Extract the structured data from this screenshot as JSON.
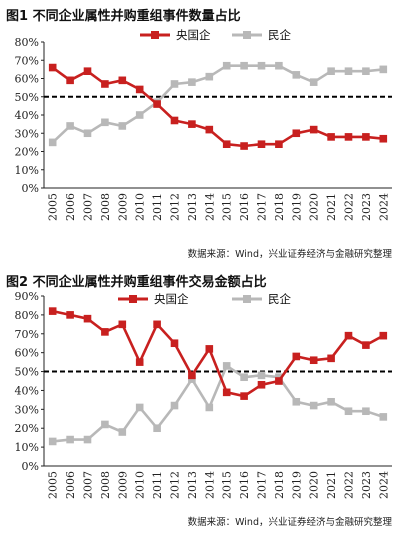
{
  "chart_data": [
    {
      "type": "line",
      "title": "图1  不同企业属性并购重组事件数量占比",
      "source": "数据来源：Wind，兴业证券经济与金融研究整理",
      "x": [
        "2005",
        "2006",
        "2007",
        "2008",
        "2009",
        "2010",
        "2011",
        "2012",
        "2013",
        "2014",
        "2015",
        "2016",
        "2017",
        "2018",
        "2019",
        "2020",
        "2021",
        "2022",
        "2023",
        "2024"
      ],
      "yticks": [
        "0%",
        "10%",
        "20%",
        "30%",
        "40%",
        "50%",
        "60%",
        "70%",
        "80%"
      ],
      "ylim": [
        0,
        80
      ],
      "reference_line": 50,
      "grid": false,
      "legend_position": "top-center",
      "series": [
        {
          "name": "央国企",
          "color": "#c8201f",
          "marker": "square",
          "values": [
            66,
            59,
            64,
            57,
            59,
            54,
            46,
            37,
            35,
            32,
            24,
            23,
            24,
            24,
            30,
            32,
            28,
            28,
            28,
            27
          ]
        },
        {
          "name": "民企",
          "color": "#b8b8b8",
          "marker": "square",
          "values": [
            25,
            34,
            30,
            36,
            34,
            40,
            47,
            57,
            58,
            61,
            67,
            67,
            67,
            67,
            62,
            58,
            64,
            64,
            64,
            65
          ]
        }
      ]
    },
    {
      "type": "line",
      "title": "图2  不同企业属性并购重组事件交易金额占比",
      "source": "数据来源：Wind，兴业证券经济与金融研究整理",
      "x": [
        "2005",
        "2006",
        "2007",
        "2008",
        "2009",
        "2010",
        "2011",
        "2012",
        "2013",
        "2014",
        "2015",
        "2016",
        "2017",
        "2018",
        "2019",
        "2020",
        "2021",
        "2022",
        "2023",
        "2024"
      ],
      "yticks": [
        "0%",
        "10%",
        "20%",
        "30%",
        "40%",
        "50%",
        "60%",
        "70%",
        "80%",
        "90%"
      ],
      "ylim": [
        0,
        90
      ],
      "reference_line": 50,
      "grid": false,
      "legend_position": "top-center",
      "series": [
        {
          "name": "央国企",
          "color": "#c8201f",
          "marker": "square",
          "values": [
            82,
            80,
            78,
            71,
            75,
            55,
            75,
            65,
            48,
            62,
            39,
            37,
            43,
            45,
            58,
            56,
            57,
            69,
            64,
            69
          ]
        },
        {
          "name": "民企",
          "color": "#b8b8b8",
          "marker": "square",
          "values": [
            13,
            14,
            14,
            22,
            18,
            31,
            20,
            32,
            46,
            31,
            53,
            47,
            48,
            47,
            34,
            32,
            34,
            29,
            29,
            26
          ]
        }
      ]
    }
  ]
}
